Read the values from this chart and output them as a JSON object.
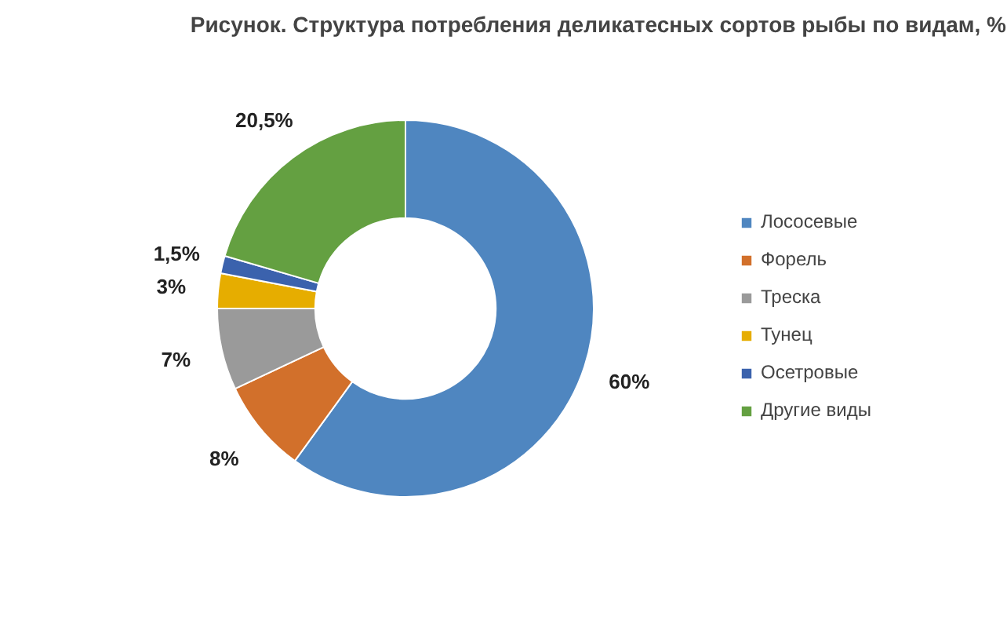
{
  "chart_data": {
    "type": "donut",
    "title": "Рисунок. Структура потребления деликатесных сортов рыбы по видам, %",
    "categories": [
      "Лососевые",
      "Форель",
      "Треска",
      "Тунец",
      "Осетровые",
      "Другие виды"
    ],
    "values": [
      60,
      8,
      7,
      3,
      1.5,
      20.5
    ],
    "colors": [
      "#4f86c0",
      "#d2702b",
      "#9a9a9a",
      "#e6ad00",
      "#3b62ad",
      "#64a041"
    ],
    "value_labels": [
      "60%",
      "8%",
      "7%",
      "3%",
      "1,5%",
      "20,5%"
    ],
    "legend": "right"
  }
}
